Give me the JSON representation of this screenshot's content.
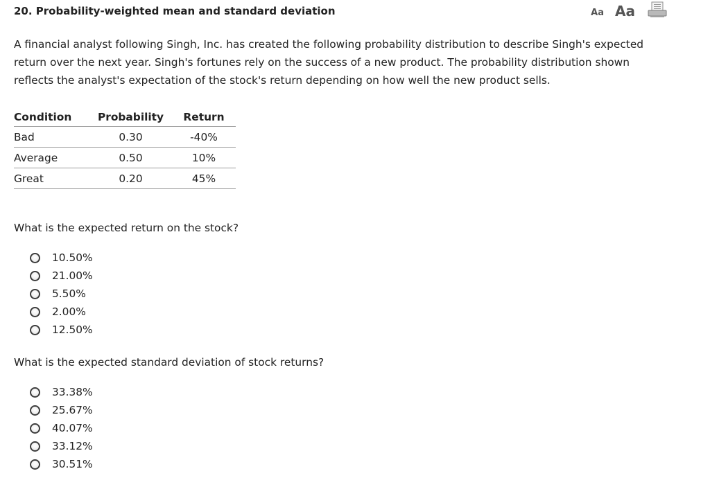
{
  "question": {
    "title": "20. Probability-weighted mean and standard deviation",
    "intro": "A financial analyst following Singh, Inc. has created the following probability distribution to describe Singh's expected return over the next year. Singh's fortunes rely on the success of a new product. The probability distribution shown reflects the analyst's expectation of the stock's return depending on how well the new product sells."
  },
  "toolbar": {
    "font_small_label": "Aa",
    "font_large_label": "Aa",
    "print_icon": "print-icon"
  },
  "table": {
    "headers": [
      "Condition",
      "Probability",
      "Return"
    ],
    "rows": [
      [
        "Bad",
        "0.30",
        "-40%"
      ],
      [
        "Average",
        "0.50",
        "10%"
      ],
      [
        "Great",
        "0.20",
        "45%"
      ]
    ]
  },
  "part1": {
    "prompt": "What is the expected return on the stock?",
    "options": [
      "10.50%",
      "21.00%",
      "5.50%",
      "2.00%",
      "12.50%"
    ]
  },
  "part2": {
    "prompt": "What is the expected standard deviation of stock returns?",
    "options": [
      "33.38%",
      "25.67%",
      "40.07%",
      "33.12%",
      "30.51%"
    ]
  }
}
